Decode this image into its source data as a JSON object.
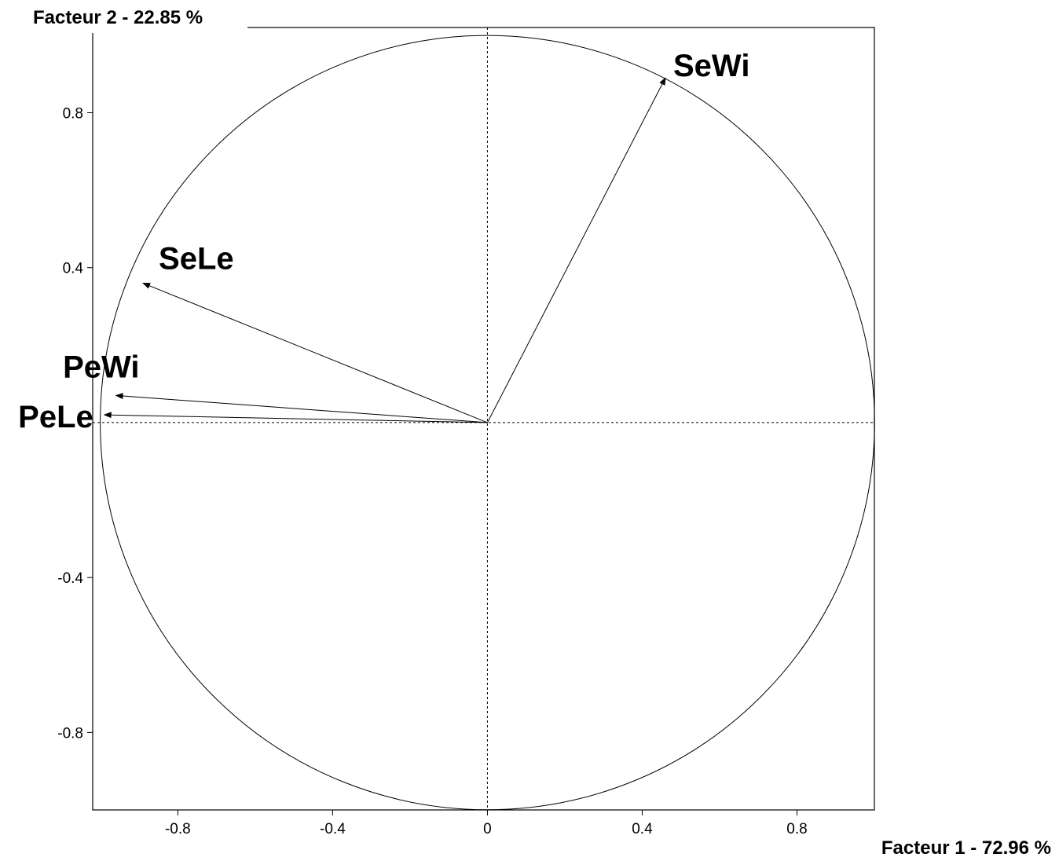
{
  "chart_data": {
    "type": "scatter",
    "subtype": "correlation-circle",
    "ylabel": "Facteur 2  -  22.85 %",
    "xlabel": "Facteur 1  -  72.96 %",
    "xlim": [
      -1.02,
      1.0
    ],
    "ylim": [
      -1.0,
      1.02
    ],
    "xticks": [
      -0.8,
      -0.4,
      0,
      0.4,
      0.8
    ],
    "xtick_labels": [
      "-0.8",
      "-0.4",
      "0",
      "0.4",
      "0.8"
    ],
    "yticks": [
      0.8,
      0.4,
      -0.4,
      -0.8
    ],
    "ytick_labels": [
      "0.8",
      "0.4",
      "-0.4",
      "-0.8"
    ],
    "grid": false,
    "unit_circle": true,
    "reference_lines": [
      "x=0",
      "y=0"
    ],
    "variables": [
      {
        "name": "SeWi",
        "x": 0.46,
        "y": 0.89
      },
      {
        "name": "SeLe",
        "x": -0.89,
        "y": 0.36
      },
      {
        "name": "PeWi",
        "x": -0.96,
        "y": 0.07
      },
      {
        "name": "PeLe",
        "x": -0.99,
        "y": 0.02
      }
    ]
  }
}
